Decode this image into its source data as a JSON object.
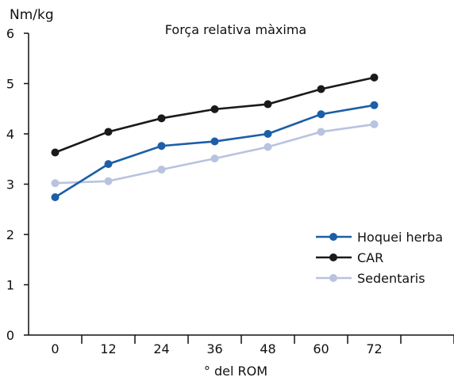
{
  "chart_data": {
    "type": "line",
    "title": "Força relativa màxima",
    "ylabel": "Nm/kg",
    "xlabel": "° del ROM",
    "categories": [
      "0",
      "12",
      "24",
      "36",
      "48",
      "60",
      "72"
    ],
    "ylim": [
      0,
      6
    ],
    "yticks": [
      0,
      1,
      2,
      3,
      4,
      5,
      6
    ],
    "grid": false,
    "legend": "right",
    "series": [
      {
        "name": "Hoquei herba",
        "color": "#1c5ea8",
        "values": [
          2.74,
          3.4,
          3.76,
          3.85,
          4.0,
          4.39,
          4.57
        ]
      },
      {
        "name": "CAR",
        "color": "#1a1a1a",
        "values": [
          3.63,
          4.04,
          4.31,
          4.49,
          4.59,
          4.89,
          5.12
        ]
      },
      {
        "name": "Sedentaris",
        "color": "#b9c3e0",
        "values": [
          3.02,
          3.06,
          3.29,
          3.51,
          3.74,
          4.04,
          4.19
        ]
      }
    ]
  }
}
